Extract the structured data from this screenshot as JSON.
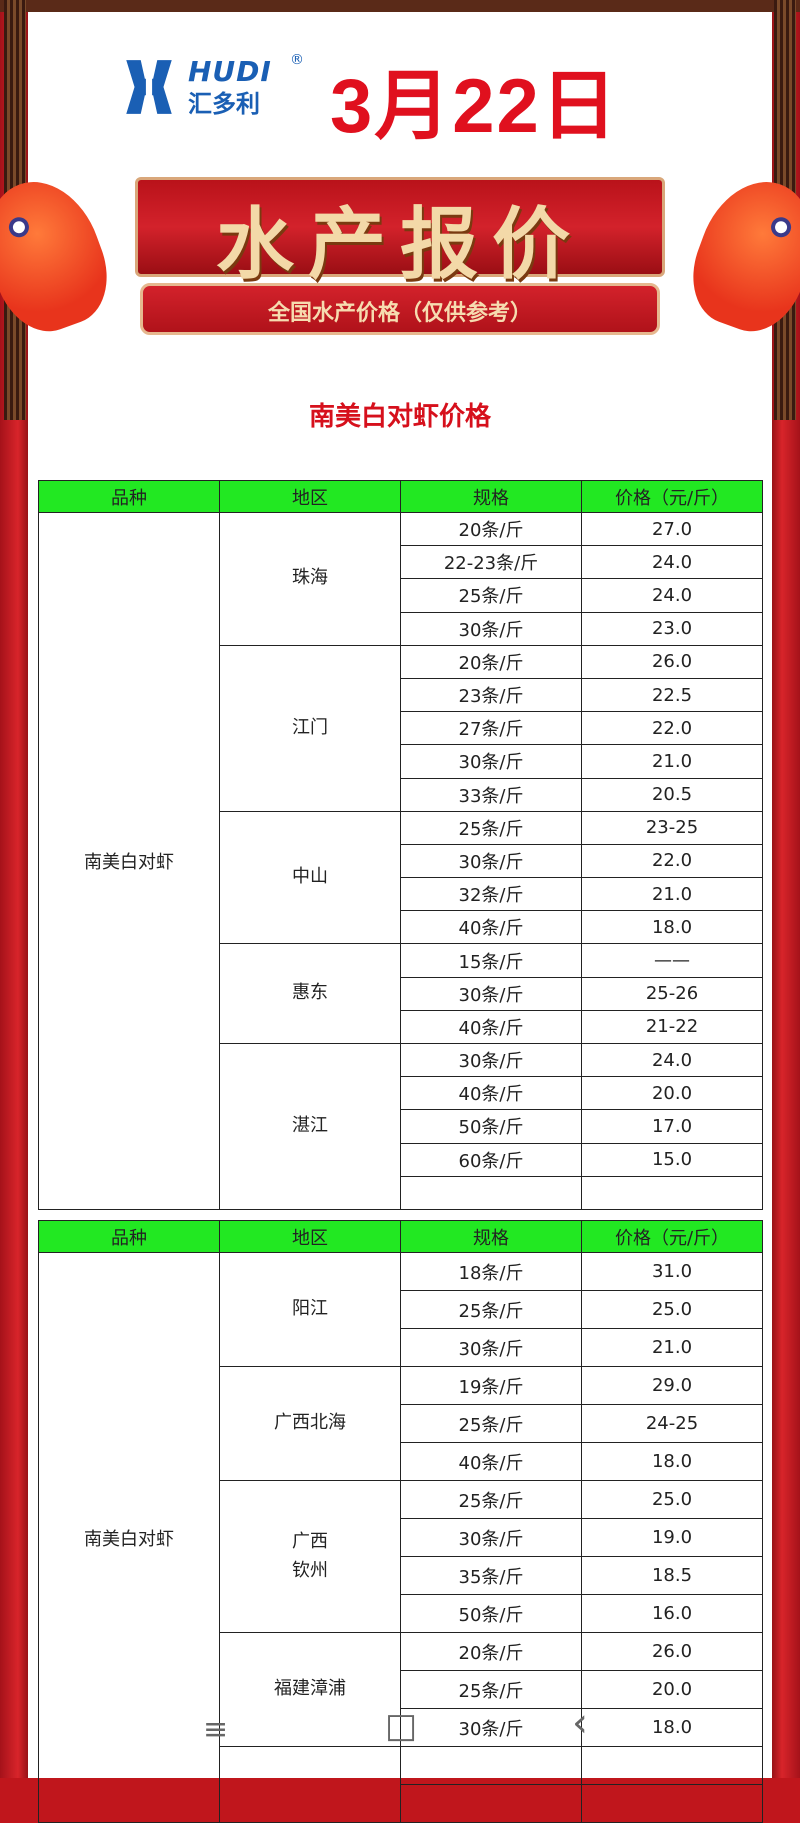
{
  "header": {
    "logo_en": "HUDI",
    "logo_cn": "汇多利",
    "reg_mark": "®",
    "date": "3月22日"
  },
  "banner": {
    "title": "水产报价",
    "subtitle": "全国水产价格（仅供参考）"
  },
  "section_title": "南美白对虾价格",
  "columns": [
    "品种",
    "地区",
    "规格",
    "价格（元/斤）"
  ],
  "tables": [
    {
      "variety": "南美白对虾",
      "row_height": 33.2,
      "regions": [
        {
          "name": "珠海",
          "rows": [
            [
              "20条/斤",
              "27.0"
            ],
            [
              "22-23条/斤",
              "24.0"
            ],
            [
              "25条/斤",
              "24.0"
            ],
            [
              "30条/斤",
              "23.0"
            ]
          ]
        },
        {
          "name": "江门",
          "rows": [
            [
              "20条/斤",
              "26.0"
            ],
            [
              "23条/斤",
              "22.5"
            ],
            [
              "27条/斤",
              "22.0"
            ],
            [
              "30条/斤",
              "21.0"
            ],
            [
              "33条/斤",
              "20.5"
            ]
          ]
        },
        {
          "name": "中山",
          "rows": [
            [
              "25条/斤",
              "23-25"
            ],
            [
              "30条/斤",
              "22.0"
            ],
            [
              "32条/斤",
              "21.0"
            ],
            [
              "40条/斤",
              "18.0"
            ]
          ]
        },
        {
          "name": "惠东",
          "rows": [
            [
              "15条/斤",
              "——"
            ],
            [
              "30条/斤",
              "25-26"
            ],
            [
              "40条/斤",
              "21-22"
            ]
          ]
        },
        {
          "name": "湛江",
          "rows": [
            [
              "30条/斤",
              "24.0"
            ],
            [
              "40条/斤",
              "20.0"
            ],
            [
              "50条/斤",
              "17.0"
            ],
            [
              "60条/斤",
              "15.0"
            ],
            [
              "",
              ""
            ]
          ]
        }
      ]
    },
    {
      "variety": "南美白对虾",
      "row_height": 38,
      "regions": [
        {
          "name": "阳江",
          "rows": [
            [
              "18条/斤",
              "31.0"
            ],
            [
              "25条/斤",
              "25.0"
            ],
            [
              "30条/斤",
              "21.0"
            ]
          ]
        },
        {
          "name": "广西北海",
          "rows": [
            [
              "19条/斤",
              "29.0"
            ],
            [
              "25条/斤",
              "24-25"
            ],
            [
              "40条/斤",
              "18.0"
            ]
          ]
        },
        {
          "name": "广西\n钦州",
          "rows": [
            [
              "25条/斤",
              "25.0"
            ],
            [
              "30条/斤",
              "19.0"
            ],
            [
              "35条/斤",
              "18.5"
            ],
            [
              "50条/斤",
              "16.0"
            ]
          ]
        },
        {
          "name": "福建漳浦",
          "rows": [
            [
              "20条/斤",
              "26.0"
            ],
            [
              "25条/斤",
              "20.0"
            ],
            [
              "30条/斤",
              "18.0"
            ]
          ]
        },
        {
          "name": "",
          "rows": [
            [
              "",
              ""
            ],
            [
              "",
              ""
            ]
          ]
        }
      ]
    }
  ],
  "nav": {
    "menu_icon": "≡",
    "home_icon": "□",
    "back_icon": "‹"
  }
}
